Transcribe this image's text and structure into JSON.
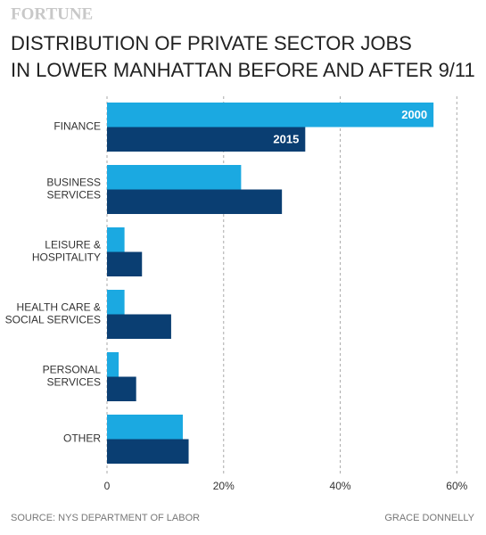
{
  "chart_data": {
    "type": "barh",
    "brand": "FORTUNE",
    "title": [
      "DISTRIBUTION OF PRIVATE SECTOR JOBS",
      "IN LOWER MANHATTAN BEFORE AND AFTER 9/11"
    ],
    "categories": [
      [
        "FINANCE"
      ],
      [
        "BUSINESS",
        "SERVICES"
      ],
      [
        "LEISURE &",
        "HOSPITALITY"
      ],
      [
        "HEALTH CARE &",
        "SOCIAL SERVICES"
      ],
      [
        "PERSONAL",
        "SERVICES"
      ],
      [
        "OTHER"
      ]
    ],
    "series": [
      {
        "name": "2000",
        "color": "#1ba9e1",
        "values": [
          56,
          23,
          3,
          3,
          2,
          13
        ]
      },
      {
        "name": "2015",
        "color": "#0a3e72",
        "values": [
          34,
          30,
          6,
          11,
          5,
          14
        ]
      }
    ],
    "xlim": [
      0,
      65
    ],
    "xticks": [
      0,
      {
        "value": 20,
        "label": "20%"
      },
      {
        "value": 40,
        "label": "40%"
      },
      {
        "value": 60,
        "label": "60%"
      }
    ],
    "grid": true,
    "source": "SOURCE: NYS DEPARTMENT OF LABOR",
    "credit": "GRACE DONNELLY"
  }
}
